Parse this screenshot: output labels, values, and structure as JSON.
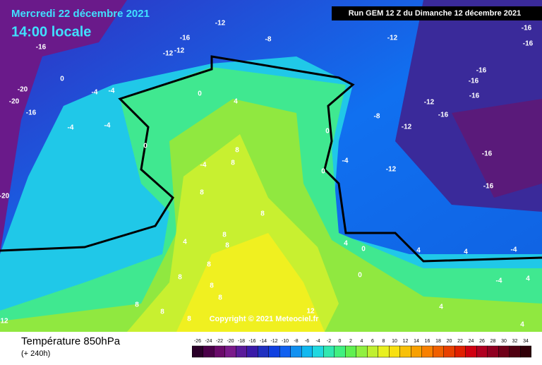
{
  "header": {
    "date": "Mercredi 22 décembre 2021",
    "time": "14:00 locale",
    "run": "Run GEM 12 Z du Dimanche 12 décembre 2021"
  },
  "footer": {
    "variable": "Température 850hPa",
    "lead": "(+ 240h)",
    "copyright": "Copyright © 2021 Meteociel.fr"
  },
  "legend": {
    "ticks": [
      -26,
      -24,
      -22,
      -20,
      -18,
      -16,
      -14,
      -12,
      -10,
      -8,
      -6,
      -4,
      -2,
      0,
      2,
      4,
      6,
      8,
      10,
      12,
      14,
      16,
      18,
      20,
      22,
      24,
      26,
      28,
      30,
      32,
      34
    ],
    "colors": [
      "#2a0028",
      "#4a0048",
      "#6a0a6a",
      "#7a1a8a",
      "#5a1a9a",
      "#3a1aa8",
      "#2030c0",
      "#1040e0",
      "#1060f0",
      "#1090f0",
      "#10b8f0",
      "#20d8e0",
      "#30e8b0",
      "#40f080",
      "#60f050",
      "#90f040",
      "#c0f030",
      "#e8f020",
      "#f8e010",
      "#f8c008",
      "#f8a000",
      "#f88000",
      "#f06000",
      "#e84000",
      "#e02000",
      "#d00010",
      "#b00020",
      "#900020",
      "#700018",
      "#500010",
      "#300008"
    ]
  },
  "contour_labels": [
    -12,
    -16,
    -12,
    -12,
    -8,
    -12,
    -16,
    -16,
    -16,
    -20,
    -20,
    -16,
    0,
    -4,
    -4,
    -4,
    -4,
    0,
    0,
    4,
    0,
    0,
    -4,
    -8,
    -12,
    -12,
    -16,
    -16,
    -16,
    -16,
    -12,
    -16,
    -16,
    -20,
    8,
    8,
    -4,
    8,
    8,
    4,
    8,
    8,
    4,
    0,
    4,
    4,
    -4,
    4,
    8,
    8,
    8,
    8,
    8,
    8,
    8,
    12,
    0,
    4,
    -4,
    4,
    12
  ]
}
